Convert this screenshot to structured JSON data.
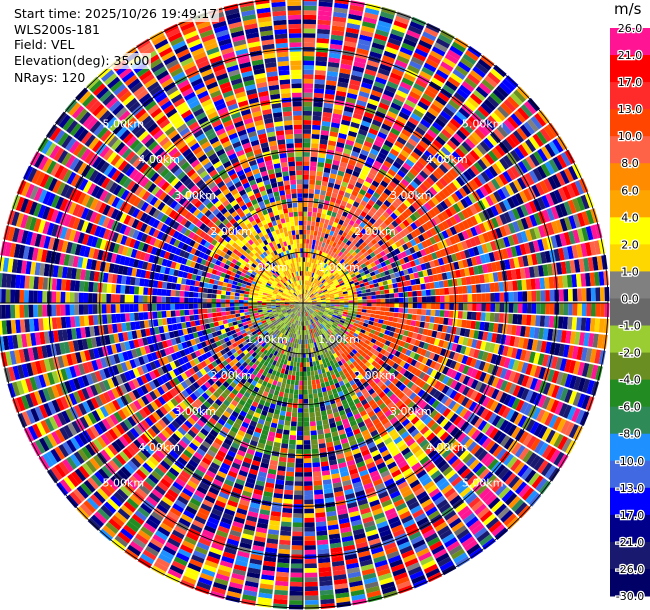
{
  "info": {
    "start_time": "Start time: 2025/10/26 19:49:17",
    "site": "WLS200s-181",
    "field": "Field: VEL",
    "elevation": "Elevation(deg): 35.00",
    "nrays": "NRays: 120"
  },
  "chart_data": {
    "type": "heatmap",
    "projection": "polar-ppi",
    "field": "VEL",
    "elevation_deg": 35.0,
    "n_rays": 120,
    "max_range_km": 6.0,
    "range_rings_km": [
      1,
      2,
      3,
      4,
      5,
      6
    ],
    "range_ring_labels": [
      "1.00km",
      "2.00km",
      "3.00km",
      "4.00km",
      "5.00km"
    ],
    "colorbar": {
      "unit": "m/s",
      "ticks": [
        "26.0",
        "21.0",
        "17.0",
        "13.0",
        "10.0",
        "8.0",
        "6.0",
        "4.0",
        "2.0",
        "1.0",
        "0.0",
        "-1.0",
        "-2.0",
        "-4.0",
        "-6.0",
        "-8.0",
        "-10.0",
        "-13.0",
        "-17.0",
        "-21.0",
        "-26.0",
        "-30.0"
      ],
      "colors": [
        "#ff1493",
        "#ff0000",
        "#ff2a2a",
        "#ff4500",
        "#ff6347",
        "#ff8c00",
        "#ffa500",
        "#ffff00",
        "#ffd700",
        "#808080",
        "#696969",
        "#9acd32",
        "#6b8e23",
        "#228b22",
        "#2e8b57",
        "#1e90ff",
        "#4169e1",
        "#0000ff",
        "#00008b",
        "#191970",
        "#000066"
      ]
    },
    "sectors": [
      {
        "from_deg": 0,
        "to_deg": 360,
        "range_km": [
          0,
          1
        ],
        "value": 4.0
      },
      {
        "from_deg": 90,
        "to_deg": 270,
        "range_km": [
          0,
          1
        ],
        "value": -1.5
      },
      {
        "from_deg": 300,
        "to_deg": 360,
        "range_km": [
          1,
          2
        ],
        "value": 4.5
      },
      {
        "from_deg": 0,
        "to_deg": 60,
        "range_km": [
          1,
          3
        ],
        "value": 9
      },
      {
        "from_deg": 30,
        "to_deg": 90,
        "range_km": [
          2.5,
          4
        ],
        "value": 12
      },
      {
        "from_deg": 90,
        "to_deg": 150,
        "range_km": [
          1,
          3
        ],
        "value": 11
      },
      {
        "from_deg": 135,
        "to_deg": 150,
        "range_km": [
          3,
          4
        ],
        "value": 3
      },
      {
        "from_deg": 150,
        "to_deg": 225,
        "range_km": [
          1,
          3
        ],
        "value": -4
      },
      {
        "from_deg": 240,
        "to_deg": 300,
        "range_km": [
          2,
          4
        ],
        "value": -16
      },
      {
        "from_deg": 250,
        "to_deg": 290,
        "range_km": [
          4,
          6
        ],
        "value": -17
      },
      {
        "from_deg": 320,
        "to_deg": 360,
        "range_km": [
          4,
          6
        ],
        "value": 3
      }
    ]
  }
}
